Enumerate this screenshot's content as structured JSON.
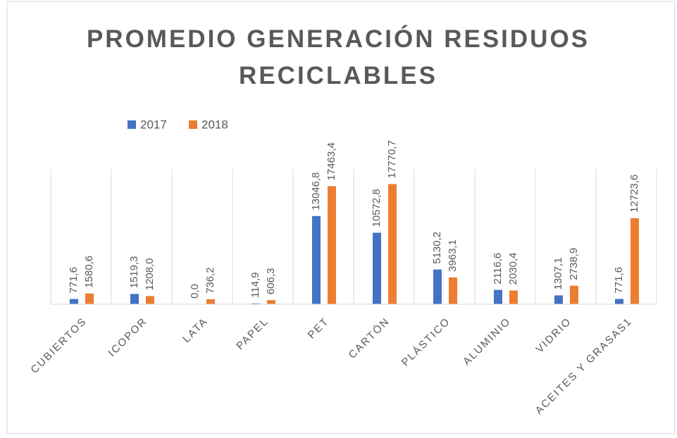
{
  "chart_data": {
    "type": "bar",
    "title": "PROMEDIO GENERACIÓN RESIDUOS RECICLABLES",
    "categories": [
      "CUBIERTOS",
      "ICOPOR",
      "LATA",
      "PAPEL",
      "PET",
      "CARTÓN",
      "PLÁSTICO",
      "ALUMINIO",
      "VIDRIO",
      "ACEITES Y GRASAS1"
    ],
    "series": [
      {
        "name": "2017",
        "color": "#4472c4",
        "values": [
          771.6,
          1519.3,
          0.0,
          114.9,
          13046.8,
          10572.8,
          5130.2,
          2116.6,
          1307.1,
          771.6
        ],
        "value_labels": [
          "771,6",
          "1519,3",
          "0,0",
          "114,9",
          "13046,8",
          "10572,8",
          "5130,2",
          "2116,6",
          "1307,1",
          "771,6"
        ]
      },
      {
        "name": "2018",
        "color": "#ed7d31",
        "values": [
          1580.6,
          1208.0,
          736.2,
          606.3,
          17463.4,
          17770.7,
          3963.1,
          2030.4,
          2738.9,
          12723.6
        ],
        "value_labels": [
          "1580,6",
          "1208,0",
          "736,2",
          "606,3",
          "17463,4",
          "17770,7",
          "3963,1",
          "2030,4",
          "2738,9",
          "12723,6"
        ]
      }
    ],
    "ylim": [
      0,
      20000
    ],
    "legend": "top-left"
  }
}
